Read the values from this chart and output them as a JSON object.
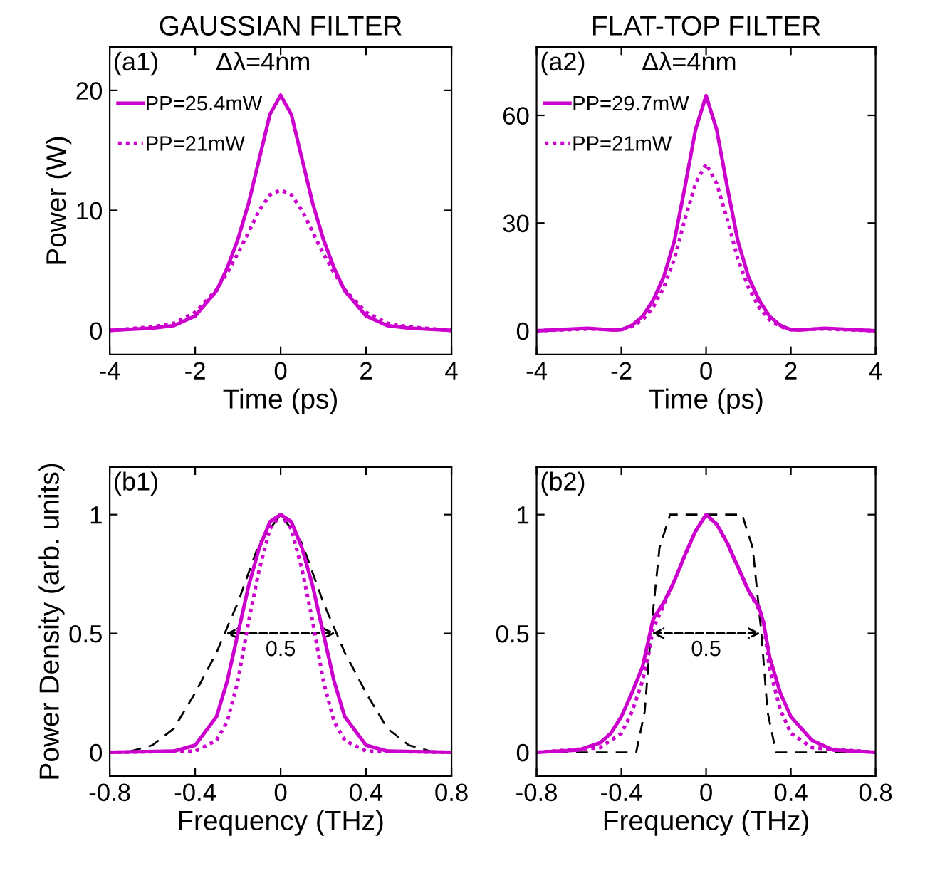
{
  "chart_data": [
    {
      "type": "line",
      "title": "GAUSSIAN FILTER",
      "xlabel": "Time (ps)",
      "ylabel": "Power (W)",
      "xlim": [
        -4,
        4
      ],
      "ylim": [
        -2,
        23.6
      ],
      "xticks": [
        -4,
        -2,
        0,
        2,
        4
      ],
      "yticks": [
        0,
        10,
        20
      ],
      "annotations": [
        "(a1)",
        "Δλ=4nm"
      ],
      "legend": "top left",
      "grid": false,
      "series": [
        {
          "name": "PP=25.4mW",
          "color": "#cc00cc",
          "line_style": "solid",
          "x": [
            -4,
            -3,
            -2.5,
            -2,
            -1.5,
            -1.25,
            -1,
            -0.75,
            -0.5,
            -0.25,
            0,
            0.25,
            0.5,
            0.75,
            1,
            1.25,
            1.5,
            2,
            2.5,
            3,
            4
          ],
          "values": [
            0,
            0.2,
            0.4,
            1.2,
            3.3,
            5.2,
            7.6,
            10.6,
            14.3,
            18,
            19.6,
            18,
            14.3,
            10.6,
            7.6,
            5.2,
            3.3,
            1.2,
            0.4,
            0.2,
            0
          ]
        },
        {
          "name": "PP=21mW",
          "color": "#cc00cc",
          "line_style": "dotted",
          "x": [
            -4,
            -3,
            -2.5,
            -2,
            -1.5,
            -1.25,
            -1,
            -0.75,
            -0.5,
            -0.25,
            0,
            0.25,
            0.5,
            0.75,
            1,
            1.25,
            1.5,
            2,
            2.5,
            3,
            4
          ],
          "values": [
            0,
            0.3,
            0.6,
            1.5,
            3.4,
            4.8,
            6.4,
            8.2,
            10,
            11.3,
            11.7,
            11.3,
            10,
            8.2,
            6.4,
            4.8,
            3.4,
            1.5,
            0.6,
            0.3,
            0
          ]
        }
      ]
    },
    {
      "type": "line",
      "title": "FLAT-TOP FILTER",
      "xlabel": "Time (ps)",
      "xlim": [
        -4,
        4
      ],
      "ylim": [
        -6.6,
        79
      ],
      "xticks": [
        -4,
        -2,
        0,
        2,
        4
      ],
      "yticks": [
        0,
        30,
        60
      ],
      "annotations": [
        "(a2)",
        "Δλ=4nm"
      ],
      "legend": "top left",
      "grid": false,
      "series": [
        {
          "name": "PP=29.7mW",
          "color": "#cc00cc",
          "line_style": "solid",
          "x": [
            -4,
            -3.5,
            -2.8,
            -2.2,
            -2,
            -1.75,
            -1.5,
            -1.25,
            -1,
            -0.75,
            -0.5,
            -0.25,
            0,
            0.25,
            0.5,
            0.75,
            1,
            1.25,
            1.5,
            1.75,
            2,
            2.2,
            2.8,
            3.5,
            4
          ],
          "values": [
            0,
            0.3,
            0.7,
            0.2,
            0.3,
            1.5,
            4,
            8.5,
            15,
            25,
            40,
            56,
            65.5,
            56,
            40,
            25,
            15,
            8.5,
            4,
            1.5,
            0.3,
            0.2,
            0.7,
            0.3,
            0
          ]
        },
        {
          "name": "PP=21mW",
          "color": "#cc00cc",
          "line_style": "dotted",
          "x": [
            -4,
            -2.8,
            -2,
            -1.75,
            -1.5,
            -1.25,
            -1,
            -0.75,
            -0.5,
            -0.25,
            0,
            0.25,
            0.5,
            0.75,
            1,
            1.25,
            1.5,
            1.75,
            2,
            2.8,
            4
          ],
          "values": [
            0,
            0.5,
            0.3,
            1.2,
            3,
            6.5,
            12,
            20,
            31,
            41,
            46.5,
            41,
            31,
            20,
            12,
            6.5,
            3,
            1.2,
            0.3,
            0.5,
            0
          ]
        }
      ]
    },
    {
      "type": "line",
      "xlabel": "Frequency (THz)",
      "ylabel": "Power Density (arb. units)",
      "xlim": [
        -0.8,
        0.8
      ],
      "ylim": [
        -0.1,
        1.2
      ],
      "xticks": [
        -0.8,
        -0.4,
        0,
        0.4,
        0.8
      ],
      "yticks": [
        0,
        0.5,
        1
      ],
      "annotations": [
        "(b1)",
        "0.5"
      ],
      "grid": false,
      "series": [
        {
          "color": "#000000",
          "line_style": "dashed",
          "x": [
            -0.8,
            -0.7,
            -0.6,
            -0.5,
            -0.4,
            -0.3,
            -0.2,
            -0.1,
            0,
            0.1,
            0.2,
            0.3,
            0.4,
            0.5,
            0.6,
            0.7,
            0.8
          ],
          "values": [
            0,
            0.005,
            0.03,
            0.1,
            0.25,
            0.42,
            0.63,
            0.88,
            1,
            0.88,
            0.63,
            0.42,
            0.25,
            0.1,
            0.03,
            0.005,
            0
          ]
        },
        {
          "color": "#cc00cc",
          "line_style": "solid",
          "x": [
            -0.8,
            -0.5,
            -0.4,
            -0.3,
            -0.25,
            -0.2,
            -0.15,
            -0.1,
            -0.05,
            0,
            0.05,
            0.1,
            0.15,
            0.2,
            0.25,
            0.3,
            0.4,
            0.5,
            0.8
          ],
          "values": [
            0,
            0.005,
            0.03,
            0.15,
            0.3,
            0.5,
            0.7,
            0.86,
            0.97,
            1,
            0.97,
            0.86,
            0.7,
            0.5,
            0.3,
            0.15,
            0.03,
            0.005,
            0
          ]
        },
        {
          "color": "#cc00cc",
          "line_style": "dotted",
          "x": [
            -0.8,
            -0.4,
            -0.3,
            -0.25,
            -0.2,
            -0.15,
            -0.1,
            -0.05,
            0,
            0.05,
            0.1,
            0.15,
            0.2,
            0.25,
            0.3,
            0.4,
            0.8
          ],
          "values": [
            0,
            0.005,
            0.05,
            0.13,
            0.3,
            0.55,
            0.77,
            0.94,
            1,
            0.94,
            0.77,
            0.55,
            0.3,
            0.13,
            0.05,
            0.005,
            0
          ]
        }
      ]
    },
    {
      "type": "line",
      "xlabel": "Frequency (THz)",
      "xlim": [
        -0.8,
        0.8
      ],
      "ylim": [
        -0.1,
        1.2
      ],
      "xticks": [
        -0.8,
        -0.4,
        0,
        0.4,
        0.8
      ],
      "yticks": [
        0,
        0.5,
        1
      ],
      "annotations": [
        "(b2)",
        "0.5"
      ],
      "grid": false,
      "series": [
        {
          "color": "#000000",
          "line_style": "dashed",
          "x": [
            -0.8,
            -0.33,
            -0.29,
            -0.26,
            -0.22,
            -0.17,
            0.17,
            0.22,
            0.26,
            0.29,
            0.33,
            0.8
          ],
          "values": [
            0,
            0,
            0.17,
            0.51,
            0.86,
            1,
            1,
            0.86,
            0.51,
            0.17,
            0,
            0
          ]
        },
        {
          "color": "#cc00cc",
          "line_style": "solid",
          "x": [
            -0.8,
            -0.6,
            -0.5,
            -0.45,
            -0.4,
            -0.35,
            -0.3,
            -0.27,
            -0.25,
            -0.2,
            -0.15,
            -0.1,
            -0.05,
            0,
            0.05,
            0.1,
            0.15,
            0.2,
            0.25,
            0.27,
            0.3,
            0.35,
            0.4,
            0.5,
            0.6,
            0.8
          ],
          "values": [
            0,
            0.01,
            0.04,
            0.08,
            0.15,
            0.25,
            0.36,
            0.48,
            0.56,
            0.63,
            0.72,
            0.83,
            0.93,
            1,
            0.96,
            0.88,
            0.78,
            0.68,
            0.61,
            0.55,
            0.4,
            0.25,
            0.15,
            0.05,
            0.01,
            0
          ]
        },
        {
          "color": "#cc00cc",
          "line_style": "dotted",
          "x": [
            -0.8,
            -0.5,
            -0.4,
            -0.35,
            -0.3,
            -0.27,
            -0.25,
            -0.2,
            -0.15,
            -0.1,
            -0.05,
            0,
            0.05,
            0.1,
            0.15,
            0.2,
            0.25,
            0.27,
            0.3,
            0.35,
            0.4,
            0.5,
            0.8
          ],
          "values": [
            0,
            0.02,
            0.08,
            0.17,
            0.3,
            0.42,
            0.52,
            0.62,
            0.72,
            0.83,
            0.93,
            1,
            0.96,
            0.88,
            0.78,
            0.68,
            0.6,
            0.55,
            0.35,
            0.18,
            0.08,
            0.02,
            0
          ]
        }
      ]
    }
  ]
}
